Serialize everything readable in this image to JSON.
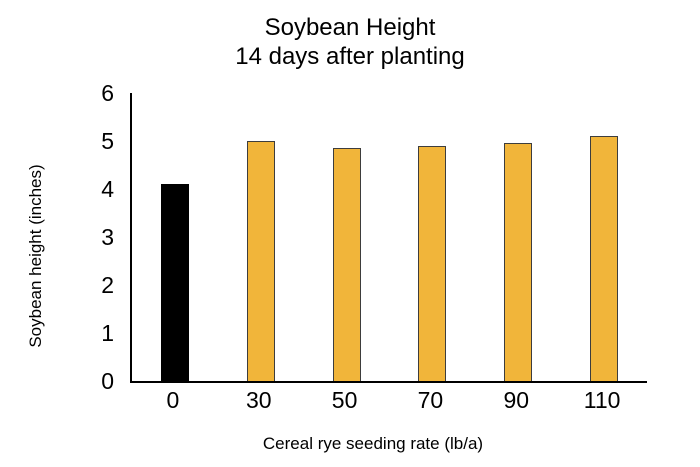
{
  "chart_data": {
    "type": "bar",
    "title": "Soybean Height",
    "subtitle": "14 days after planting",
    "xlabel": "Cereal rye seeding rate (lb/a)",
    "ylabel": "Soybean height (inches)",
    "categories": [
      "0",
      "30",
      "50",
      "70",
      "90",
      "110"
    ],
    "values": [
      4.1,
      5.0,
      4.85,
      4.9,
      4.95,
      5.1
    ],
    "ylim": [
      0,
      6
    ],
    "yticks": [
      "0",
      "1",
      "2",
      "3",
      "4",
      "5",
      "6"
    ],
    "grid": false,
    "legend": false,
    "axis_color": "#000000",
    "bar_colors": [
      "#000000",
      "#F1B53A",
      "#F1B53A",
      "#F1B53A",
      "#F1B53A",
      "#F1B53A"
    ],
    "bar_border_colors": [
      "#000000",
      "#3D3D3D",
      "#3D3D3D",
      "#3D3D3D",
      "#3D3D3D",
      "#3D3D3D"
    ]
  }
}
